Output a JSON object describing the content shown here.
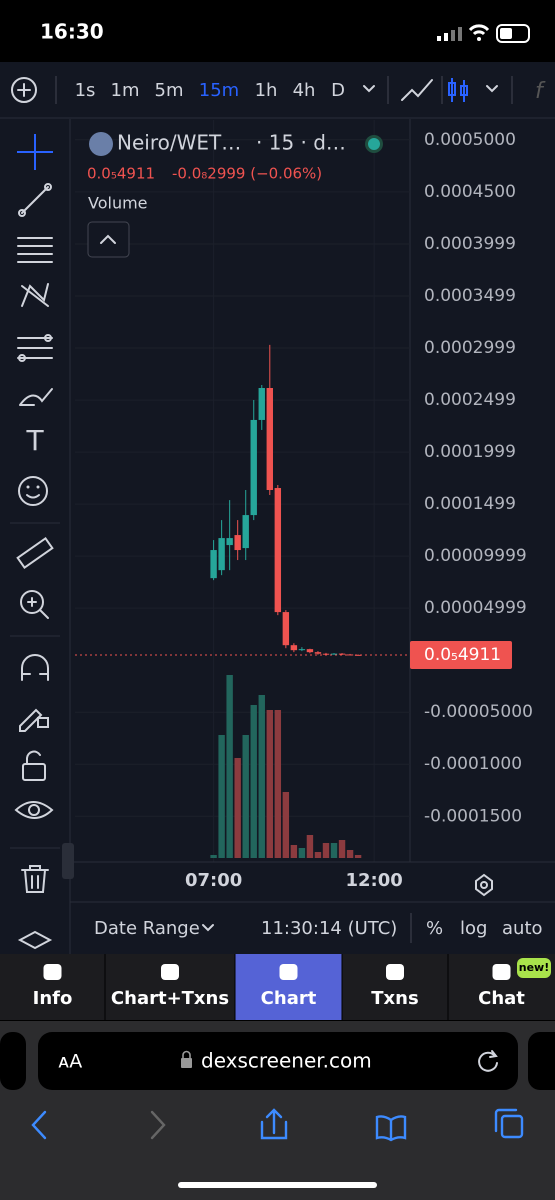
{
  "status_bar": {
    "time": "16:30"
  },
  "toolbar": {
    "intervals": [
      "1s",
      "1m",
      "5m",
      "15m",
      "1h",
      "4h",
      "D"
    ],
    "active_interval": 3
  },
  "chart_data": {
    "type": "candlestick",
    "title": "Neiro/WET…",
    "subtitle": "· 15 · d…",
    "legend_price": "0.0₅4911",
    "legend_change": "-0.0₈2999 (−0.06%)",
    "volume_label": "Volume",
    "x": [
      "07:00",
      "07:15",
      "07:30",
      "07:45",
      "08:00",
      "08:15",
      "08:30",
      "08:45",
      "09:00",
      "09:15",
      "09:30",
      "09:45",
      "10:00",
      "10:15",
      "10:30",
      "10:45",
      "11:00",
      "11:15",
      "11:30"
    ],
    "open": [
      7.88e-05,
      8.65e-05,
      0.0001106,
      0.0001202,
      0.0001077,
      0.0001394,
      0.0002308,
      0.0002615,
      0.0001654,
      4.62e-05,
      1.44e-05,
      9.6e-06,
      1.06e-05,
      7.7e-06,
      6.2e-06,
      5.8e-06,
      6.3e-06,
      5.5e-06,
      5.1e-06
    ],
    "high": [
      0.0001154,
      0.0001346,
      0.0001538,
      0.0001346,
      0.0001635,
      0.00025,
      0.0002644,
      0.0003029,
      0.0001683,
      4.81e-05,
      1.63e-05,
      1.25e-05,
      1.1e-05,
      8.7e-06,
      7e-06,
      6.8e-06,
      6.8e-06,
      6e-06,
      5.5e-06
    ],
    "low": [
      7.69e-05,
      8.17e-05,
      8.65e-05,
      9.62e-05,
      9.62e-05,
      0.0001346,
      0.0002212,
      0.0001587,
      4.33e-05,
      1.15e-05,
      7.7e-06,
      8.7e-06,
      6.7e-06,
      5.3e-06,
      5.2e-06,
      5.3e-06,
      5e-06,
      4.8e-06,
      4.7e-06
    ],
    "close": [
      0.0001058,
      0.0001173,
      0.0001173,
      0.0001058,
      0.0001394,
      0.0002308,
      0.0002615,
      0.0001635,
      4.62e-05,
      1.44e-05,
      9.6e-06,
      1.06e-05,
      7.7e-06,
      6.2e-06,
      5.8e-06,
      6.3e-06,
      5.5e-06,
      5.1e-06,
      4.911e-06
    ],
    "volume": [
      3,
      123,
      183,
      100,
      123,
      153,
      163,
      148,
      148,
      66,
      13,
      10,
      23,
      6,
      15,
      15,
      18,
      8,
      3
    ],
    "up_color": "#26a69a",
    "down_color": "#ef5350",
    "up_volume_color": "#22665d",
    "down_volume_color": "#8c3b3f",
    "ylim": [
      -0.000192,
      0.000519
    ],
    "yticks": [
      {
        "value": 0.0005,
        "label": "0.0005000"
      },
      {
        "value": 0.00045,
        "label": "0.0004500"
      },
      {
        "value": 0.0003999,
        "label": "0.0003999"
      },
      {
        "value": 0.0003499,
        "label": "0.0003499"
      },
      {
        "value": 0.0002999,
        "label": "0.0002999"
      },
      {
        "value": 0.0002499,
        "label": "0.0002499"
      },
      {
        "value": 0.0001999,
        "label": "0.0001999"
      },
      {
        "value": 0.0001499,
        "label": "0.0001499"
      },
      {
        "value": 9.999e-05,
        "label": "0.00009999"
      },
      {
        "value": 4.999e-05,
        "label": "0.00004999"
      },
      {
        "value": -5e-05,
        "label": "-0.00005000"
      },
      {
        "value": -0.0001,
        "label": "-0.0001000"
      },
      {
        "value": -0.00015,
        "label": "-0.0001500"
      }
    ],
    "xlim": [
      "02:41",
      "13:07"
    ],
    "xticks": [
      "07:00",
      "12:00"
    ],
    "last_price": {
      "value": 4.911e-06,
      "label": "0.0₅4911"
    }
  },
  "chart_footer": {
    "date_range": "Date Range",
    "clock": "11:30:14 (UTC)",
    "percent": "%",
    "log": "log",
    "auto": "auto"
  },
  "tabs": {
    "items": [
      "Info",
      "Chart+Txns",
      "Chart",
      "Txns",
      "Chat"
    ],
    "active": 2,
    "badge": "new!"
  },
  "browser": {
    "text_size": "ᴀA",
    "url": "dexscreener.com"
  }
}
